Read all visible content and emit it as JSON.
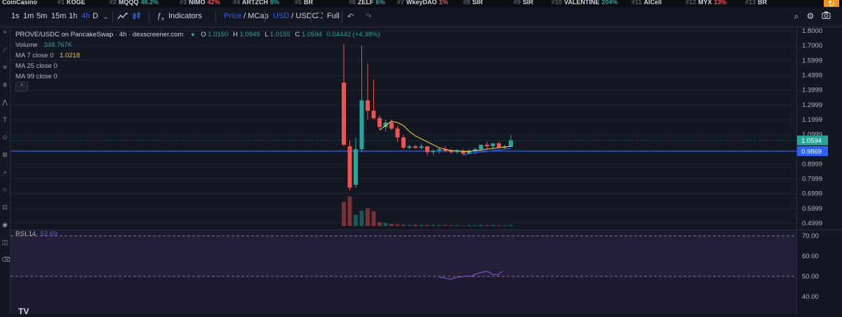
{
  "ticker": {
    "items": [
      {
        "rank": "",
        "name": "CoinCasino",
        "change": "",
        "dir": "up"
      },
      {
        "rank": "#1",
        "name": "KOGE",
        "change": "",
        "dir": "up"
      },
      {
        "rank": "#2",
        "name": "MQQQ",
        "change": "48.2%",
        "dir": "up"
      },
      {
        "rank": "#3",
        "name": "NIMO",
        "change": "42%",
        "dir": "dn"
      },
      {
        "rank": "#4",
        "name": "ARTZCH",
        "change": "6%",
        "dir": "up"
      },
      {
        "rank": "#5",
        "name": "BR",
        "change": "",
        "dir": "up"
      },
      {
        "rank": "#6",
        "name": "ZELF",
        "change": "6%",
        "dir": "up"
      },
      {
        "rank": "#7",
        "name": "WkeyDAO",
        "change": "1%",
        "dir": "dn"
      },
      {
        "rank": "#8",
        "name": "SIR",
        "change": "",
        "dir": "up"
      },
      {
        "rank": "#9",
        "name": "SIR",
        "change": "",
        "dir": "up"
      },
      {
        "rank": "#10",
        "name": "VALENTINE",
        "change": "204%",
        "dir": "up"
      },
      {
        "rank": "#11",
        "name": "AICell",
        "change": "",
        "dir": "up"
      },
      {
        "rank": "#12",
        "name": "MYX",
        "change": "13%",
        "dir": "dn"
      },
      {
        "rank": "#13",
        "name": "BR",
        "change": "",
        "dir": "up"
      }
    ]
  },
  "toolbar": {
    "intervals": [
      "1s",
      "1m",
      "5m",
      "15m",
      "1h",
      "4h",
      "D"
    ],
    "active_interval": "4h",
    "indicators_label": "Indicators",
    "price_label": "Price",
    "slash": "/",
    "mcap_label": "MCap",
    "usd_label": "USD",
    "usdc_label": "USDC",
    "full_label": "Full"
  },
  "legend": {
    "symbol": "PROVE/USDC on PancakeSwap · 4h · dexscreener.com",
    "o_label": "O",
    "o_value": "1.0150",
    "h_label": "H",
    "h_value": "1.0949",
    "l_label": "L",
    "l_value": "1.0155",
    "c_label": "C",
    "c_value": "1.0594",
    "change": "0.04442 (+4.38%)",
    "volume_label": "Volume",
    "volume_value": "348.767K",
    "ma7_label": "MA 7 close 0",
    "ma7_value": "1.0218",
    "ma25_label": "MA 25 close 0",
    "ma99_label": "MA 99 close 0"
  },
  "rsi": {
    "label": "RSI 14",
    "value": "52.69",
    "ticks": [
      "70.00",
      "60.00",
      "50.00",
      "40.00"
    ],
    "tick_values": [
      70,
      60,
      50,
      40
    ],
    "upper": 70,
    "lower": 50,
    "line_values": [
      49.5,
      49.2,
      48.6,
      49.4,
      49.8,
      50.2,
      50.1,
      51.3,
      52.1,
      52.5,
      51.0,
      50.8,
      52.69
    ]
  },
  "price_axis": {
    "ticks": [
      "1.8000",
      "1.7000",
      "1.5999",
      "1.4999",
      "1.3999",
      "1.2999",
      "1.1999",
      "1.0999",
      "0.8999",
      "0.7999",
      "0.6999",
      "0.5999",
      "0.4999"
    ],
    "tick_values": [
      1.8,
      1.7,
      1.6,
      1.5,
      1.4,
      1.3,
      1.2,
      1.1,
      0.9,
      0.8,
      0.7,
      0.6,
      0.5
    ],
    "last_price": "1.0594",
    "last_price_value": 1.0594,
    "hline_price": "0.9869",
    "hline_value": 0.9869
  },
  "chart_data": {
    "type": "candlestick",
    "up_color": "#26a69a",
    "down_color": "#ef5350",
    "candles": [
      {
        "o": 1.45,
        "h": 1.71,
        "l": 1.02,
        "c": 1.03
      },
      {
        "o": 1.02,
        "h": 1.06,
        "l": 0.72,
        "c": 0.74
      },
      {
        "o": 0.76,
        "h": 1.08,
        "l": 0.74,
        "c": 1.0
      },
      {
        "o": 1.0,
        "h": 1.7,
        "l": 0.98,
        "c": 1.33
      },
      {
        "o": 1.33,
        "h": 1.58,
        "l": 1.2,
        "c": 1.26
      },
      {
        "o": 1.26,
        "h": 1.47,
        "l": 1.2,
        "c": 1.21
      },
      {
        "o": 1.21,
        "h": 1.23,
        "l": 1.13,
        "c": 1.15
      },
      {
        "o": 1.15,
        "h": 1.2,
        "l": 1.12,
        "c": 1.18
      },
      {
        "o": 1.18,
        "h": 1.2,
        "l": 1.13,
        "c": 1.14
      },
      {
        "o": 1.14,
        "h": 1.16,
        "l": 1.05,
        "c": 1.08
      },
      {
        "o": 1.08,
        "h": 1.1,
        "l": 1.0,
        "c": 1.01
      },
      {
        "o": 1.01,
        "h": 1.03,
        "l": 1.0,
        "c": 1.02
      },
      {
        "o": 1.02,
        "h": 1.03,
        "l": 1.0,
        "c": 1.01
      },
      {
        "o": 1.01,
        "h": 1.04,
        "l": 1.0,
        "c": 1.02
      },
      {
        "o": 1.02,
        "h": 1.02,
        "l": 0.96,
        "c": 0.98
      },
      {
        "o": 0.98,
        "h": 1.0,
        "l": 0.96,
        "c": 0.99
      },
      {
        "o": 0.99,
        "h": 1.01,
        "l": 0.97,
        "c": 1.0
      },
      {
        "o": 1.0,
        "h": 1.02,
        "l": 0.98,
        "c": 0.99
      },
      {
        "o": 0.99,
        "h": 1.0,
        "l": 0.97,
        "c": 0.98
      },
      {
        "o": 0.98,
        "h": 1.0,
        "l": 0.97,
        "c": 0.99
      },
      {
        "o": 0.99,
        "h": 1.0,
        "l": 0.96,
        "c": 0.97
      },
      {
        "o": 0.97,
        "h": 1.0,
        "l": 0.97,
        "c": 0.99
      },
      {
        "o": 0.99,
        "h": 1.01,
        "l": 0.97,
        "c": 1.0
      },
      {
        "o": 1.0,
        "h": 1.03,
        "l": 0.99,
        "c": 1.03
      },
      {
        "o": 1.03,
        "h": 1.05,
        "l": 1.0,
        "c": 1.02
      },
      {
        "o": 1.02,
        "h": 1.04,
        "l": 1.0,
        "c": 1.04
      },
      {
        "o": 1.04,
        "h": 1.05,
        "l": 1.01,
        "c": 1.01
      },
      {
        "o": 1.01,
        "h": 1.03,
        "l": 1.0,
        "c": 1.02
      },
      {
        "o": 1.015,
        "h": 1.0949,
        "l": 1.0155,
        "c": 1.0594
      }
    ],
    "volumes": [
      0.82,
      1.0,
      0.38,
      0.52,
      0.6,
      0.5,
      0.13,
      0.11,
      0.07,
      0.06,
      0.05,
      0.04,
      0.05,
      0.04,
      0.04,
      0.04,
      0.03,
      0.04,
      0.03,
      0.03,
      0.02,
      0.03,
      0.03,
      0.04,
      0.03,
      0.04,
      0.03,
      0.03,
      0.04
    ],
    "ma7": [
      null,
      null,
      null,
      null,
      null,
      null,
      1.13,
      1.16,
      1.19,
      1.18,
      1.16,
      1.12,
      1.09,
      1.07,
      1.05,
      1.03,
      1.01,
      1.0,
      0.99,
      0.99,
      0.985,
      0.985,
      0.99,
      0.995,
      1.0,
      1.005,
      1.01,
      1.015,
      1.02
    ],
    "ma25": [
      null,
      null,
      null,
      null,
      null,
      null,
      null,
      null,
      null,
      null,
      null,
      null,
      null,
      null,
      null,
      null,
      null,
      null,
      null,
      null,
      0.96,
      0.97,
      0.975,
      0.98,
      0.985,
      0.99,
      0.995,
      1.0,
      1.005
    ]
  }
}
